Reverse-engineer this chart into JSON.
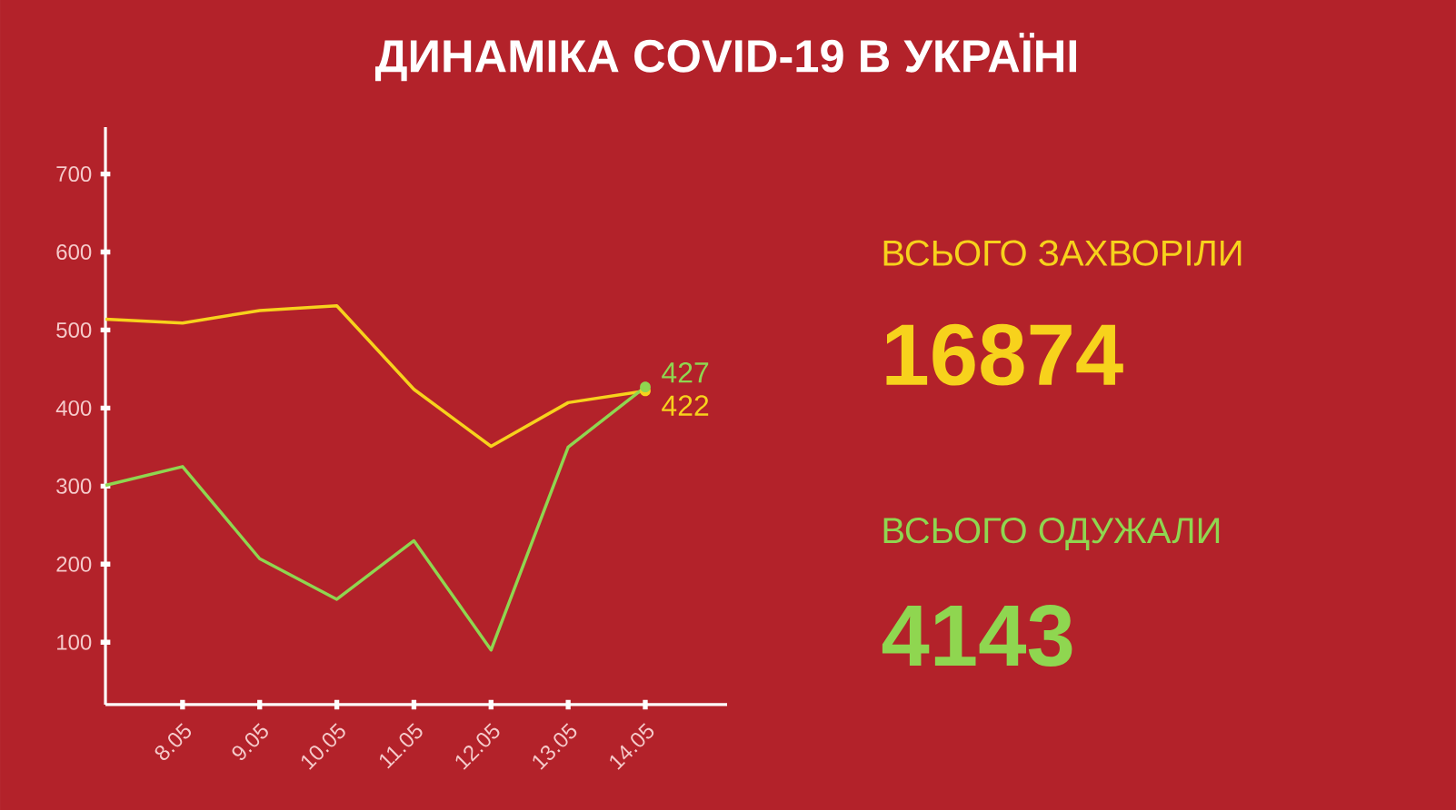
{
  "chart_data": {
    "type": "line",
    "title": "ДИНАМІКА COVID-19 В УКРАЇНІ",
    "categories": [
      null,
      "8.05",
      "9.05",
      "10.05",
      "11.05",
      "12.05",
      "13.05",
      "14.05"
    ],
    "series": [
      {
        "color": "#f7d21c",
        "values": [
          514,
          509,
          525,
          531,
          424,
          351,
          407,
          422
        ],
        "value_labels": [
          null,
          null,
          null,
          null,
          null,
          null,
          null,
          "422"
        ]
      },
      {
        "color": "#8fd650",
        "values": [
          301,
          325,
          207,
          155,
          230,
          90,
          350,
          427
        ],
        "value_labels": [
          null,
          null,
          null,
          null,
          null,
          null,
          null,
          "427"
        ]
      }
    ],
    "ylim": [
      20,
      760
    ],
    "yticks": [
      100,
      200,
      300,
      400,
      500,
      600,
      700
    ],
    "grid": false,
    "annotations": [
      "ВСЬОГО ЗАХВОРІЛИ",
      "16874",
      "ВСЬОГО ОДУЖАЛИ",
      "4143"
    ]
  }
}
